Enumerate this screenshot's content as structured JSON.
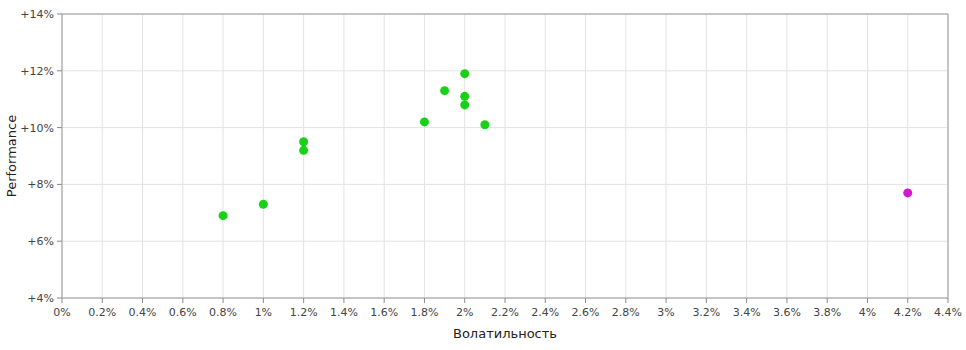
{
  "chart_data": {
    "type": "scatter",
    "xlabel": "Волатильность",
    "ylabel": "Performance",
    "xlim": [
      0.0,
      0.044
    ],
    "ylim": [
      0.04,
      0.14
    ],
    "xticks": [
      {
        "value": 0.0,
        "label": "0%"
      },
      {
        "value": 0.002,
        "label": "0.2%"
      },
      {
        "value": 0.004,
        "label": "0.4%"
      },
      {
        "value": 0.006,
        "label": "0.6%"
      },
      {
        "value": 0.008,
        "label": "0.8%"
      },
      {
        "value": 0.01,
        "label": "1%"
      },
      {
        "value": 0.012,
        "label": "1.2%"
      },
      {
        "value": 0.014,
        "label": "1.4%"
      },
      {
        "value": 0.016,
        "label": "1.6%"
      },
      {
        "value": 0.018,
        "label": "1.8%"
      },
      {
        "value": 0.02,
        "label": "2%"
      },
      {
        "value": 0.022,
        "label": "2.2%"
      },
      {
        "value": 0.024,
        "label": "2.4%"
      },
      {
        "value": 0.026,
        "label": "2.6%"
      },
      {
        "value": 0.028,
        "label": "2.8%"
      },
      {
        "value": 0.03,
        "label": "3%"
      },
      {
        "value": 0.032,
        "label": "3.2%"
      },
      {
        "value": 0.034,
        "label": "3.4%"
      },
      {
        "value": 0.036,
        "label": "3.6%"
      },
      {
        "value": 0.038,
        "label": "3.8%"
      },
      {
        "value": 0.04,
        "label": "4%"
      },
      {
        "value": 0.042,
        "label": "4.2%"
      },
      {
        "value": 0.044,
        "label": "4.4%"
      }
    ],
    "yticks": [
      {
        "value": 0.04,
        "label": "+4%"
      },
      {
        "value": 0.06,
        "label": "+6%"
      },
      {
        "value": 0.08,
        "label": "+8%"
      },
      {
        "value": 0.1,
        "label": "+10%"
      },
      {
        "value": 0.12,
        "label": "+12%"
      },
      {
        "value": 0.14,
        "label": "+14%"
      }
    ],
    "grid": true,
    "series": [
      {
        "color": "#00cc00",
        "x": [
          0.008,
          0.01,
          0.012,
          0.012,
          0.018,
          0.019,
          0.02,
          0.02,
          0.02,
          0.021
        ],
        "values": [
          0.069,
          0.073,
          0.095,
          0.092,
          0.102,
          0.113,
          0.119,
          0.111,
          0.108,
          0.101
        ]
      },
      {
        "color": "#cc00cc",
        "x": [
          0.042
        ],
        "values": [
          0.077
        ]
      }
    ]
  }
}
